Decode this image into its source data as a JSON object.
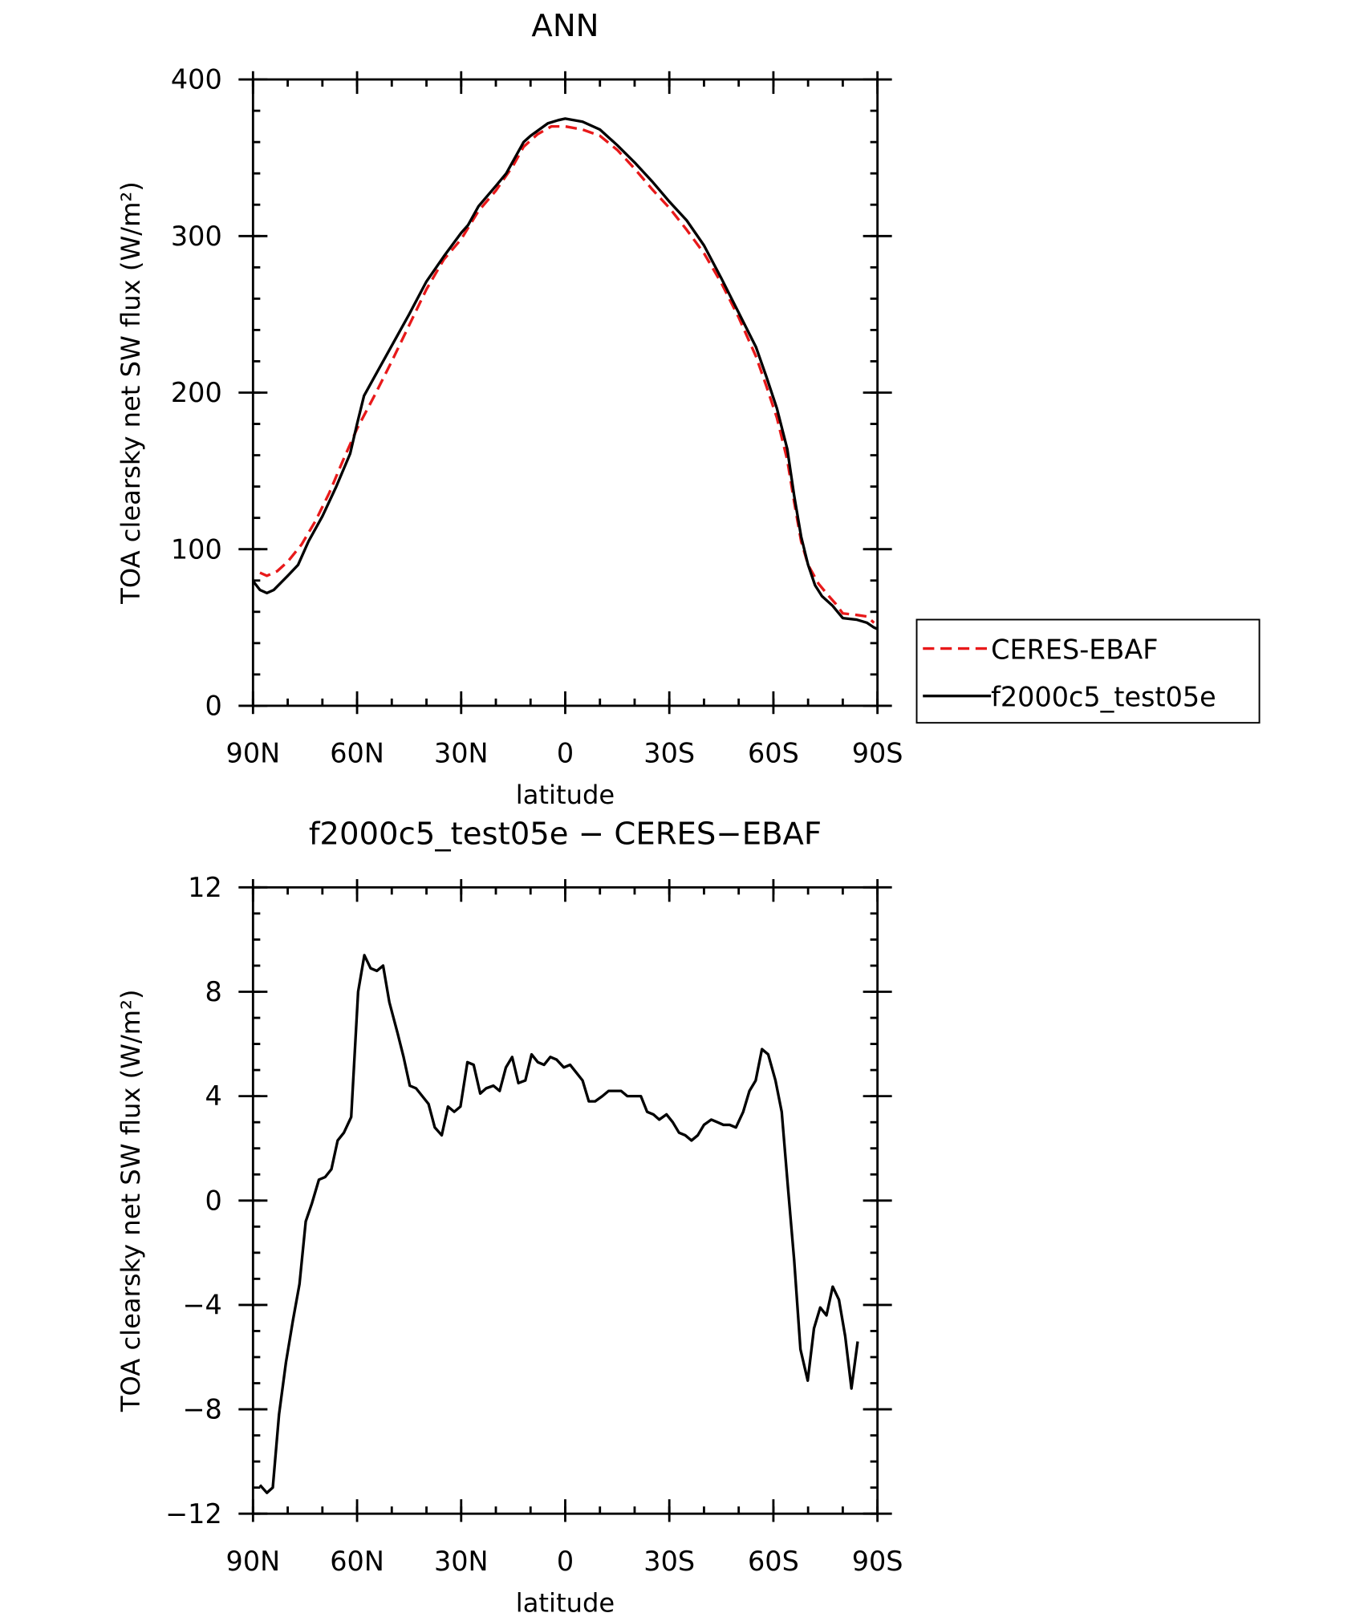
{
  "chart_data": [
    {
      "type": "line",
      "title": "ANN",
      "xlabel": "latitude",
      "ylabel": "TOA clearsky net SW flux (W/m²)",
      "xlim": [
        90,
        -90
      ],
      "xticks": [
        {
          "value": 90,
          "label": "90N"
        },
        {
          "value": 60,
          "label": "60N"
        },
        {
          "value": 30,
          "label": "30N"
        },
        0,
        {
          "value": -30,
          "label": "30S"
        },
        {
          "value": -60,
          "label": "60S"
        },
        {
          "value": -90,
          "label": "90S"
        }
      ],
      "xminor_step": 10,
      "ylim": [
        0,
        400
      ],
      "yticks": [
        0,
        100,
        200,
        300,
        400
      ],
      "yminor_step": 20,
      "legend": "right",
      "series": [
        {
          "name": "CERES-EBAF",
          "color": "#e8191a",
          "dashed": true,
          "x": [
            88,
            86,
            83,
            80,
            76,
            72,
            68,
            64,
            60,
            55,
            50,
            45,
            40,
            35,
            30,
            25,
            20,
            15,
            12,
            8,
            4,
            0,
            -5,
            -10,
            -15,
            -20,
            -25,
            -30,
            -35,
            -40,
            -45,
            -50,
            -55,
            -58,
            -61,
            -64,
            -66,
            -68,
            -70,
            -73,
            -76,
            -78,
            -80,
            -84,
            -87,
            -89
          ],
          "values": [
            85,
            83,
            86,
            92,
            103,
            118,
            136,
            157,
            177,
            198,
            220,
            243,
            266,
            285,
            298,
            316,
            329,
            345,
            357,
            365,
            370,
            370,
            368,
            364,
            355,
            343,
            330,
            318,
            304,
            289,
            270,
            248,
            223,
            204,
            184,
            157,
            130,
            105,
            90,
            78,
            70,
            65,
            59,
            58,
            57,
            53
          ]
        },
        {
          "name": "f2000c5_test05e",
          "color": "#000000",
          "dashed": false,
          "x": [
            90,
            88,
            86,
            84,
            80,
            77,
            74,
            70,
            66,
            62,
            60,
            58,
            55,
            50,
            45,
            40,
            35,
            30,
            28,
            25,
            20,
            17,
            14,
            12,
            10,
            5,
            2,
            0,
            -5,
            -10,
            -15,
            -20,
            -25,
            -30,
            -35,
            -40,
            -45,
            -50,
            -55,
            -58,
            -61,
            -64,
            -66,
            -68,
            -70,
            -72,
            -74,
            -77,
            -80,
            -84,
            -87,
            -89,
            -90
          ],
          "values": [
            79.7,
            74,
            72,
            74,
            83,
            90,
            105,
            121,
            140,
            161,
            180,
            198,
            210,
            230,
            250,
            271,
            287,
            302,
            307,
            319,
            332,
            340,
            352,
            360,
            364,
            372,
            374,
            375,
            373,
            368,
            358,
            347,
            335,
            322,
            310,
            294,
            273,
            251,
            229,
            210,
            190,
            164,
            134,
            108,
            90,
            77,
            70,
            64,
            56,
            55,
            53,
            50,
            49
          ]
        }
      ]
    },
    {
      "type": "line",
      "title": "f2000c5_test05e − CERES−EBAF",
      "xlabel": "latitude",
      "ylabel": "TOA clearsky net SW flux (W/m²)",
      "xlim": [
        90,
        -90
      ],
      "xticks": [
        {
          "value": 90,
          "label": "90N"
        },
        {
          "value": 60,
          "label": "60N"
        },
        {
          "value": 30,
          "label": "30N"
        },
        0,
        {
          "value": -30,
          "label": "30S"
        },
        {
          "value": -60,
          "label": "60S"
        },
        {
          "value": -90,
          "label": "90S"
        }
      ],
      "xminor_step": 10,
      "ylim": [
        -12,
        12
      ],
      "yticks": [
        {
          "value": -12,
          "label": "−12"
        },
        {
          "value": -8,
          "label": "−8"
        },
        {
          "value": -4,
          "label": "−4"
        },
        0,
        4,
        8,
        12
      ],
      "yminor_step": 1,
      "series": [
        {
          "color": "#000000",
          "dashed": false,
          "x": [
            88,
            86,
            84.3,
            82.5,
            80.5,
            78.5,
            76.6,
            74.8,
            73,
            71,
            69.2,
            67.4,
            65.6,
            63.8,
            61.7,
            59.7,
            57.9,
            56.1,
            54.3,
            52.5,
            50.7,
            48.3,
            46.6,
            44.8,
            43,
            41.2,
            39.4,
            37.6,
            35.6,
            33.8,
            32,
            30.2,
            28.2,
            26.4,
            24.5,
            22.8,
            20.7,
            18.9,
            17.1,
            15.3,
            13.5,
            11.5,
            9.7,
            7.9,
            6.1,
            4.3,
            2.5,
            0.4,
            -1.4,
            -3.2,
            -5,
            -6.8,
            -8.6,
            -10.7,
            -12.5,
            -14.3,
            -16.1,
            -17.9,
            -20,
            -21.8,
            -23.6,
            -25.4,
            -27.1,
            -29.2,
            -31,
            -32.8,
            -34.6,
            -36.4,
            -38.2,
            -40,
            -42.1,
            -43.9,
            -45.6,
            -47.4,
            -49.2,
            -51.3,
            -53.1,
            -54.9,
            -56.7,
            -58.5,
            -60.6,
            -62.4,
            -64.2,
            -66,
            -67.8,
            -69.9,
            -71.7,
            -73.5,
            -75.3,
            -77.1,
            -78.9,
            -80.7,
            -82.5,
            -84.3
          ],
          "values": [
            -10.9,
            -11.2,
            -11,
            -8.2,
            -6.2,
            -4.6,
            -3.2,
            -0.8,
            -0.1,
            0.8,
            0.9,
            1.2,
            2.3,
            2.6,
            3.2,
            8,
            9.4,
            8.9,
            8.8,
            9,
            7.6,
            6.4,
            5.5,
            4.4,
            4.3,
            4,
            3.7,
            2.8,
            2.5,
            3.6,
            3.4,
            3.6,
            5.3,
            5.2,
            4.1,
            4.3,
            4.4,
            4.2,
            5.1,
            5.5,
            4.5,
            4.6,
            5.6,
            5.3,
            5.2,
            5.5,
            5.4,
            5.1,
            5.2,
            4.9,
            4.6,
            3.8,
            3.8,
            4,
            4.2,
            4.2,
            4.2,
            4,
            4,
            4,
            3.4,
            3.3,
            3.1,
            3.3,
            3,
            2.6,
            2.5,
            2.3,
            2.5,
            2.9,
            3.1,
            3,
            2.9,
            2.9,
            2.8,
            3.4,
            4.2,
            4.6,
            5.8,
            5.6,
            4.6,
            3.4,
            0.5,
            -2.3,
            -5.7,
            -6.9,
            -4.9,
            -4.1,
            -4.4,
            -3.3,
            -3.8,
            -5.2,
            -7.2,
            -5.4
          ]
        }
      ]
    }
  ]
}
